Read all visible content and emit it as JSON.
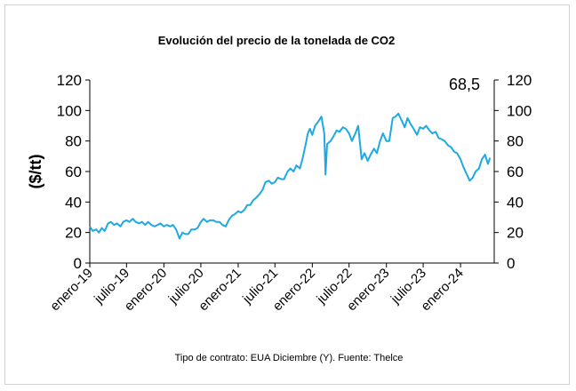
{
  "chart_data": {
    "type": "line",
    "title": "Evolución del precio de la tonelada de CO2",
    "ylabel": "($/tt)",
    "xlabel": "",
    "ylim": [
      0,
      120
    ],
    "yticks": [
      0,
      20,
      40,
      60,
      80,
      100,
      120
    ],
    "y2ticks": [
      0,
      20,
      40,
      60,
      80,
      100,
      120
    ],
    "xtick_labels": [
      "enero-19",
      "julio-19",
      "enero-20",
      "julio-20",
      "enero-21",
      "julio-21",
      "enero-22",
      "julio-22",
      "enero-23",
      "julio-23",
      "enero-24"
    ],
    "last_value_label": "68,5",
    "footnote": "Tipo de contrato: EUA Diciembre (Y). Fuente: Thelce",
    "line_color": "#1FA9E1",
    "grid": false,
    "series": [
      {
        "x": [
          "2019-01-01",
          "2019-01-15",
          "2019-02-01",
          "2019-02-15",
          "2019-03-01",
          "2019-03-15",
          "2019-04-01",
          "2019-04-15",
          "2019-05-01",
          "2019-05-15",
          "2019-06-01",
          "2019-06-15",
          "2019-07-01",
          "2019-07-15",
          "2019-08-01",
          "2019-08-15",
          "2019-09-01",
          "2019-09-15",
          "2019-10-01",
          "2019-10-15",
          "2019-11-01",
          "2019-11-15",
          "2019-12-01",
          "2019-12-15",
          "2020-01-01",
          "2020-01-15",
          "2020-02-01",
          "2020-02-15",
          "2020-03-01",
          "2020-03-10",
          "2020-03-18",
          "2020-03-25",
          "2020-04-01",
          "2020-04-15",
          "2020-05-01",
          "2020-05-15",
          "2020-06-01",
          "2020-06-15",
          "2020-07-01",
          "2020-07-15",
          "2020-08-01",
          "2020-08-15",
          "2020-09-01",
          "2020-09-15",
          "2020-10-01",
          "2020-10-15",
          "2020-11-01",
          "2020-11-15",
          "2020-12-01",
          "2020-12-15",
          "2021-01-01",
          "2021-01-15",
          "2021-02-01",
          "2021-02-15",
          "2021-03-01",
          "2021-03-15",
          "2021-04-01",
          "2021-04-15",
          "2021-05-01",
          "2021-05-15",
          "2021-06-01",
          "2021-06-15",
          "2021-07-01",
          "2021-07-15",
          "2021-08-01",
          "2021-08-15",
          "2021-09-01",
          "2021-09-15",
          "2021-10-01",
          "2021-10-15",
          "2021-11-01",
          "2021-11-15",
          "2021-12-01",
          "2021-12-10",
          "2021-12-20",
          "2022-01-01",
          "2022-01-15",
          "2022-02-01",
          "2022-02-15",
          "2022-03-01",
          "2022-03-07",
          "2022-03-15",
          "2022-04-01",
          "2022-04-15",
          "2022-05-01",
          "2022-05-15",
          "2022-06-01",
          "2022-06-15",
          "2022-07-01",
          "2022-07-15",
          "2022-08-01",
          "2022-08-15",
          "2022-09-01",
          "2022-09-15",
          "2022-10-01",
          "2022-10-15",
          "2022-11-01",
          "2022-11-15",
          "2022-12-01",
          "2022-12-15",
          "2023-01-01",
          "2023-01-15",
          "2023-02-01",
          "2023-02-15",
          "2023-03-01",
          "2023-03-15",
          "2023-04-01",
          "2023-04-15",
          "2023-05-01",
          "2023-05-15",
          "2023-06-01",
          "2023-06-15",
          "2023-07-01",
          "2023-07-15",
          "2023-08-01",
          "2023-08-15",
          "2023-09-01",
          "2023-09-15",
          "2023-10-01",
          "2023-10-15",
          "2023-11-01",
          "2023-11-15",
          "2023-12-01",
          "2023-12-15",
          "2024-01-01",
          "2024-01-15",
          "2024-02-01",
          "2024-02-15",
          "2024-03-01",
          "2024-03-15",
          "2024-04-01",
          "2024-04-15",
          "2024-05-01",
          "2024-05-15",
          "2024-05-25"
        ],
        "values": [
          24,
          21,
          22,
          20,
          23,
          21,
          26,
          27,
          25,
          26,
          24,
          27,
          28,
          27,
          29,
          27,
          26,
          27,
          25,
          27,
          25,
          24,
          25,
          26,
          24,
          25,
          24,
          25,
          22,
          19,
          16,
          18,
          20,
          19,
          19,
          22,
          22,
          23,
          27,
          29,
          27,
          28,
          28,
          27,
          27,
          25,
          24,
          28,
          31,
          32,
          34,
          33,
          35,
          38,
          38,
          41,
          43,
          45,
          48,
          53,
          54,
          52,
          53,
          56,
          55,
          55,
          60,
          62,
          60,
          64,
          62,
          69,
          79,
          85,
          88,
          84,
          90,
          93,
          96,
          85,
          58,
          78,
          80,
          83,
          87,
          86,
          89,
          88,
          85,
          80,
          85,
          90,
          68,
          72,
          67,
          71,
          75,
          72,
          80,
          85,
          80,
          80,
          95,
          96,
          98,
          94,
          89,
          95,
          91,
          88,
          84,
          89,
          88,
          90,
          87,
          85,
          86,
          82,
          81,
          80,
          77,
          76,
          73,
          72,
          68,
          63,
          58,
          54,
          56,
          60,
          62,
          68,
          71,
          65,
          69
        ]
      }
    ]
  }
}
